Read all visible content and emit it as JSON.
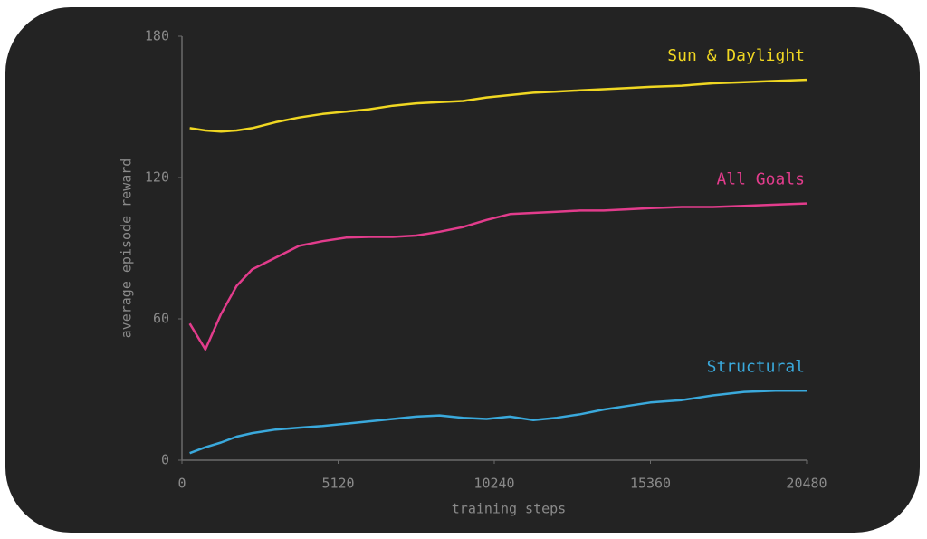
{
  "chart_data": {
    "type": "line",
    "xlabel": "training steps",
    "ylabel": "average episode reward",
    "x": [
      256,
      768,
      1280,
      1792,
      2304,
      3072,
      3840,
      4608,
      5376,
      6144,
      6912,
      7680,
      8448,
      9216,
      9984,
      10752,
      11520,
      12288,
      13056,
      13824,
      14592,
      15360,
      16384,
      17408,
      18432,
      19456,
      20480
    ],
    "series": [
      {
        "name": "Sun & Daylight",
        "color": "#f0d722",
        "values": [
          141,
          140,
          139.5,
          140,
          141,
          143.5,
          145.5,
          147,
          148,
          149,
          150.5,
          151.5,
          152,
          152.5,
          154,
          155,
          156,
          156.5,
          157,
          157.5,
          158,
          158.5,
          159,
          160,
          160.5,
          161,
          161.5
        ]
      },
      {
        "name": "All Goals",
        "color": "#e23c8c",
        "values": [
          58,
          47,
          62,
          74,
          81,
          86,
          91,
          93,
          94.5,
          94.8,
          94.8,
          95.4,
          97,
          99,
          102,
          104.5,
          105,
          105.5,
          106,
          106,
          106.5,
          107,
          107.5,
          107.5,
          108,
          108.5,
          109
        ]
      },
      {
        "name": "Structural",
        "color": "#3aa9dc",
        "values": [
          3,
          5.5,
          7.5,
          10,
          11.5,
          13,
          13.8,
          14.5,
          15.5,
          16.5,
          17.5,
          18.5,
          19,
          18,
          17.5,
          18.5,
          17,
          18,
          19.5,
          21.5,
          23,
          24.5,
          25.5,
          27.5,
          29,
          29.5,
          29.5
        ]
      }
    ],
    "xlim": [
      0,
      20480
    ],
    "xticks": [
      0,
      5120,
      10240,
      15360,
      20480
    ],
    "ylim": [
      0,
      180
    ],
    "yticks": [
      0,
      60,
      120,
      180
    ]
  }
}
